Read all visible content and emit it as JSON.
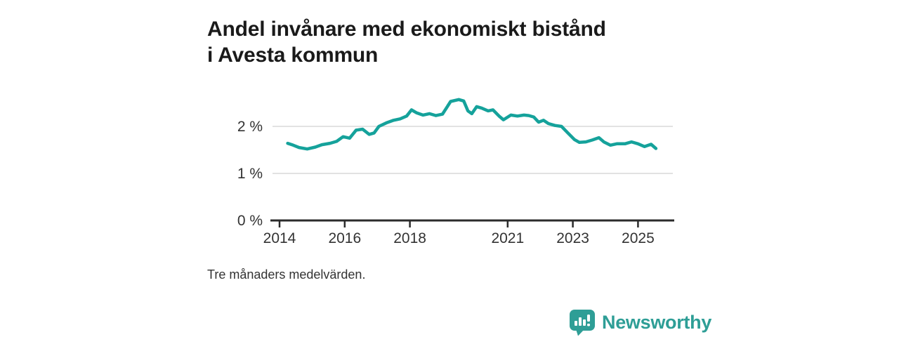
{
  "title": "Andel invånare med ekonomiskt bistånd i Avesta kommun",
  "footnote": "Tre månaders medelvärden.",
  "branding": {
    "logo_text": "Newsworthy",
    "logo_icon": "bar-chart-speech-bubble-icon"
  },
  "colors": {
    "line": "#15A29B",
    "grid": "#D9D9D9",
    "axis": "#2B2B2B",
    "tick_text": "#333333",
    "title_text": "#1A1A1A",
    "brand": "#2E9E96"
  },
  "chart_data": {
    "type": "line",
    "title": "Andel invånare med ekonomiskt bistånd i Avesta kommun",
    "xlabel": "",
    "ylabel": "",
    "unit": "%",
    "xlim": [
      2013.7,
      2026.1
    ],
    "ylim": [
      0,
      2.9
    ],
    "grid": "horizontal",
    "legend": "none",
    "x_ticks": [
      2014,
      2016,
      2018,
      2021,
      2023,
      2025
    ],
    "y_ticks": [
      {
        "value": 0,
        "label": "0 %"
      },
      {
        "value": 1,
        "label": "1 %"
      },
      {
        "value": 2,
        "label": "2 %"
      }
    ],
    "series": [
      {
        "name": "Andel invånare med ekonomiskt bistånd",
        "points": [
          [
            2014.25,
            1.64
          ],
          [
            2014.42,
            1.6
          ],
          [
            2014.6,
            1.55
          ],
          [
            2014.85,
            1.52
          ],
          [
            2015.1,
            1.56
          ],
          [
            2015.3,
            1.61
          ],
          [
            2015.55,
            1.64
          ],
          [
            2015.75,
            1.68
          ],
          [
            2015.95,
            1.78
          ],
          [
            2016.15,
            1.75
          ],
          [
            2016.35,
            1.92
          ],
          [
            2016.55,
            1.94
          ],
          [
            2016.75,
            1.83
          ],
          [
            2016.9,
            1.86
          ],
          [
            2017.05,
            2.0
          ],
          [
            2017.3,
            2.08
          ],
          [
            2017.5,
            2.13
          ],
          [
            2017.7,
            2.16
          ],
          [
            2017.9,
            2.22
          ],
          [
            2018.05,
            2.35
          ],
          [
            2018.2,
            2.29
          ],
          [
            2018.4,
            2.24
          ],
          [
            2018.6,
            2.27
          ],
          [
            2018.8,
            2.23
          ],
          [
            2019.0,
            2.26
          ],
          [
            2019.25,
            2.53
          ],
          [
            2019.5,
            2.57
          ],
          [
            2019.65,
            2.54
          ],
          [
            2019.78,
            2.33
          ],
          [
            2019.9,
            2.27
          ],
          [
            2020.05,
            2.42
          ],
          [
            2020.2,
            2.39
          ],
          [
            2020.4,
            2.33
          ],
          [
            2020.55,
            2.35
          ],
          [
            2020.75,
            2.21
          ],
          [
            2020.87,
            2.14
          ],
          [
            2021.1,
            2.24
          ],
          [
            2021.3,
            2.22
          ],
          [
            2021.5,
            2.24
          ],
          [
            2021.65,
            2.23
          ],
          [
            2021.8,
            2.2
          ],
          [
            2021.95,
            2.09
          ],
          [
            2022.1,
            2.13
          ],
          [
            2022.25,
            2.06
          ],
          [
            2022.45,
            2.02
          ],
          [
            2022.65,
            2.0
          ],
          [
            2022.85,
            1.86
          ],
          [
            2023.05,
            1.72
          ],
          [
            2023.2,
            1.66
          ],
          [
            2023.4,
            1.67
          ],
          [
            2023.6,
            1.71
          ],
          [
            2023.8,
            1.76
          ],
          [
            2023.95,
            1.67
          ],
          [
            2024.15,
            1.6
          ],
          [
            2024.35,
            1.63
          ],
          [
            2024.6,
            1.63
          ],
          [
            2024.8,
            1.67
          ],
          [
            2025.0,
            1.63
          ],
          [
            2025.2,
            1.57
          ],
          [
            2025.4,
            1.62
          ],
          [
            2025.55,
            1.53
          ]
        ]
      }
    ]
  }
}
